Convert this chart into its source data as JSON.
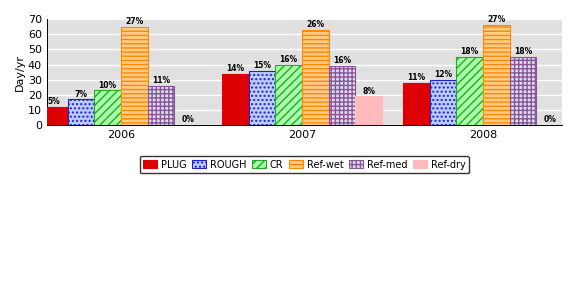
{
  "years": [
    "2006",
    "2007",
    "2008"
  ],
  "series": {
    "PLUG": [
      12,
      34,
      28
    ],
    "ROUGH": [
      17,
      36,
      30
    ],
    "CR": [
      23,
      40,
      45
    ],
    "Ref-wet": [
      65,
      63,
      66
    ],
    "Ref-med": [
      26,
      39,
      45
    ],
    "Ref-dry": [
      0,
      19,
      0
    ]
  },
  "labels": {
    "PLUG": [
      "5%",
      "14%",
      "11%"
    ],
    "ROUGH": [
      "7%",
      "15%",
      "12%"
    ],
    "CR": [
      "10%",
      "16%",
      "18%"
    ],
    "Ref-wet": [
      "27%",
      "26%",
      "27%"
    ],
    "Ref-med": [
      "11%",
      "16%",
      "18%"
    ],
    "Ref-dry": [
      "0%",
      "8%",
      "0%"
    ]
  },
  "bar_facecolors": {
    "PLUG": "#DD0000",
    "ROUGH": "#ffffff",
    "CR": "#ffffff",
    "Ref-wet": "#ffffff",
    "Ref-med": "#ffffff",
    "Ref-dry": "#FFBBBB"
  },
  "bar_edgecolors": {
    "PLUG": "#DD0000",
    "ROUGH": "#2222CC",
    "CR": "#22AA22",
    "Ref-wet": "#FF8800",
    "Ref-med": "#884488",
    "Ref-dry": "#FFBBBB"
  },
  "hatches": {
    "PLUG": "",
    "ROUGH": "....",
    "CR": "////",
    "Ref-wet": "----",
    "Ref-med": "////",
    "Ref-dry": ""
  },
  "ylabel": "Day/yr",
  "ylim": [
    0,
    70
  ],
  "yticks": [
    0,
    10,
    20,
    30,
    40,
    50,
    60,
    70
  ],
  "bar_width": 0.115,
  "legend_labels": [
    "PLUG",
    "ROUGH",
    "CR",
    "Ref-wet",
    "Ref-med",
    "Ref-dry"
  ],
  "background_color": "#E0E0E0",
  "grid_color": "#FFFFFF"
}
